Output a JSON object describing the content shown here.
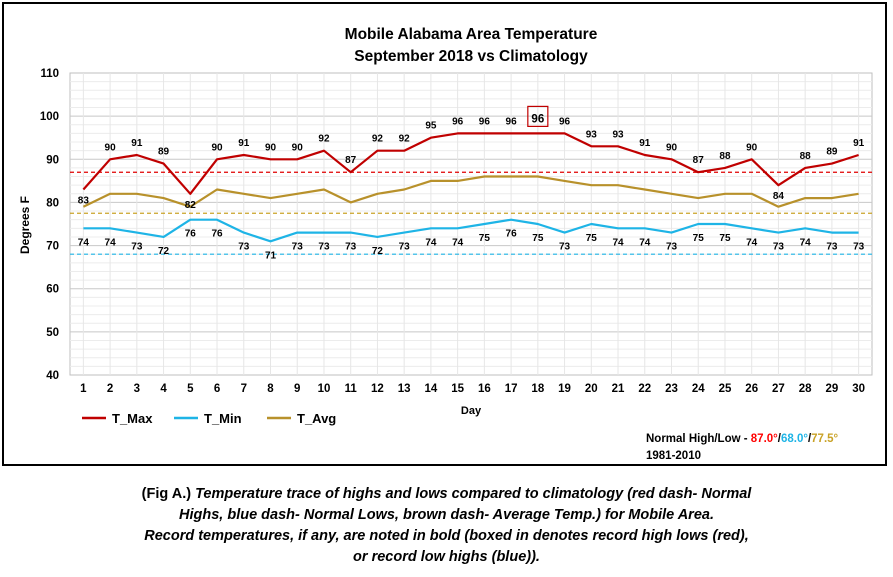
{
  "chart_data": {
    "type": "line",
    "title": "Mobile Alabama Area Temperature",
    "subtitle": "September 2018 vs Climatology",
    "xlabel": "Day",
    "ylabel": "Degrees F",
    "ylim": [
      40,
      110
    ],
    "yticks": [
      40,
      50,
      60,
      70,
      80,
      90,
      100,
      110
    ],
    "grid": true,
    "x": [
      1,
      2,
      3,
      4,
      5,
      6,
      7,
      8,
      9,
      10,
      11,
      12,
      13,
      14,
      15,
      16,
      17,
      18,
      19,
      20,
      21,
      22,
      23,
      24,
      25,
      26,
      27,
      28,
      29,
      30
    ],
    "series": [
      {
        "name": "T_Max",
        "color": "#c00000",
        "values": [
          83,
          90,
          91,
          89,
          82,
          90,
          91,
          90,
          90,
          92,
          87,
          92,
          92,
          95,
          96,
          96,
          96,
          96,
          96,
          93,
          93,
          91,
          90,
          87,
          88,
          90,
          84,
          88,
          89,
          91
        ]
      },
      {
        "name": "T_Min",
        "color": "#1eb4e6",
        "values": [
          74,
          74,
          73,
          72,
          76,
          76,
          73,
          71,
          73,
          73,
          73,
          72,
          73,
          74,
          74,
          75,
          76,
          75,
          73,
          75,
          74,
          74,
          73,
          75,
          75,
          74,
          73,
          74,
          73,
          73
        ]
      },
      {
        "name": "T_Avg",
        "color": "#b8912b",
        "values": [
          79,
          82,
          82,
          81,
          79,
          83,
          82,
          81,
          82,
          83,
          80,
          82,
          83,
          85,
          85,
          86,
          86,
          86,
          85,
          84,
          84,
          83,
          82,
          81,
          82,
          82,
          79,
          81,
          81,
          82
        ]
      }
    ],
    "reference_lines": [
      {
        "label": "Normal High",
        "value": 87.0,
        "color": "#e00000"
      },
      {
        "label": "Normal Low",
        "value": 68.0,
        "color": "#1eb4e6"
      },
      {
        "label": "Average Temp",
        "value": 77.5,
        "color": "#c9a227"
      }
    ],
    "labeled_series": [
      "T_Max",
      "T_Min"
    ],
    "record_highlight": {
      "series": "T_Max",
      "day": 18,
      "value": 96,
      "box_color": "#c00000"
    },
    "legend_position": "bottom-left"
  },
  "normals": {
    "prefix": "Normal High/Low - ",
    "high": "87.0°",
    "sep1": "/",
    "low": "68.0°",
    "sep2": "/",
    "avg": "77.5°",
    "period": "1981-2010",
    "colors": {
      "high": "#ff0000",
      "low": "#1eb4e6",
      "avg": "#c9a227"
    }
  },
  "caption": {
    "prefix": "(Fig A.) ",
    "line1": "Temperature trace of highs and lows compared to climatology (red dash- Normal",
    "line2": "Highs, blue dash- Normal Lows, brown dash- Average Temp.) for Mobile Area.",
    "line3": "Record temperatures, if any, are noted in bold (boxed in denotes record high lows (red),",
    "line4": "or record low highs (blue))."
  }
}
